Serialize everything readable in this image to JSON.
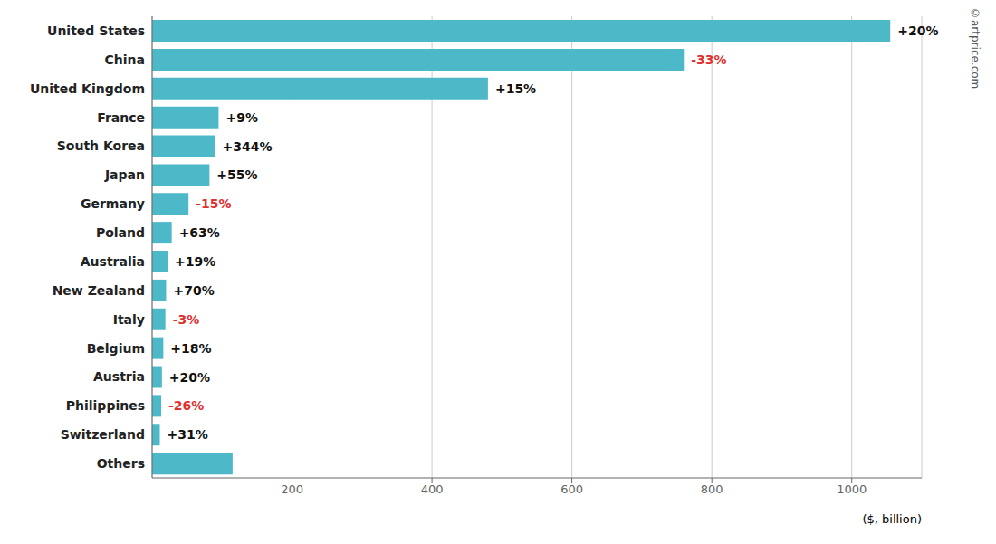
{
  "chart_data": {
    "type": "bar",
    "orientation": "horizontal",
    "categories": [
      "United States",
      "China",
      "United Kingdom",
      "France",
      "South Korea",
      "Japan",
      "Germany",
      "Poland",
      "Australia",
      "New Zealand",
      "Italy",
      "Belgium",
      "Austria",
      "Philippines",
      "Switzerland",
      "Others"
    ],
    "values": [
      1055,
      760,
      480,
      95,
      90,
      82,
      52,
      28,
      22,
      20,
      19,
      16,
      14,
      13,
      11,
      115
    ],
    "color": "#4DB8C8",
    "xlim": [
      0,
      1100
    ],
    "xticks": [
      200,
      400,
      600,
      800,
      1000
    ],
    "grid": true,
    "xlabel": "($, billion)",
    "watermark": "©artprice.com",
    "annotations": [
      {
        "category": "United States",
        "text": "+20%",
        "color": "#111111"
      },
      {
        "category": "China",
        "text": "-33%",
        "color": "#e03030"
      },
      {
        "category": "United Kingdom",
        "text": "+15%",
        "color": "#111111"
      },
      {
        "category": "France",
        "text": "+9%",
        "color": "#111111"
      },
      {
        "category": "South Korea",
        "text": "+344%",
        "color": "#111111"
      },
      {
        "category": "Japan",
        "text": "+55%",
        "color": "#111111"
      },
      {
        "category": "Germany",
        "text": "-15%",
        "color": "#e03030"
      },
      {
        "category": "Poland",
        "text": "+63%",
        "color": "#111111"
      },
      {
        "category": "Australia",
        "text": "+19%",
        "color": "#111111"
      },
      {
        "category": "New Zealand",
        "text": "+70%",
        "color": "#111111"
      },
      {
        "category": "Italy",
        "text": "-3%",
        "color": "#e03030"
      },
      {
        "category": "Belgium",
        "text": "+18%",
        "color": "#111111"
      },
      {
        "category": "Austria",
        "text": "+20%",
        "color": "#111111"
      },
      {
        "category": "Philippines",
        "text": "-26%",
        "color": "#e03030"
      },
      {
        "category": "Switzerland",
        "text": "+31%",
        "color": "#111111"
      }
    ]
  }
}
